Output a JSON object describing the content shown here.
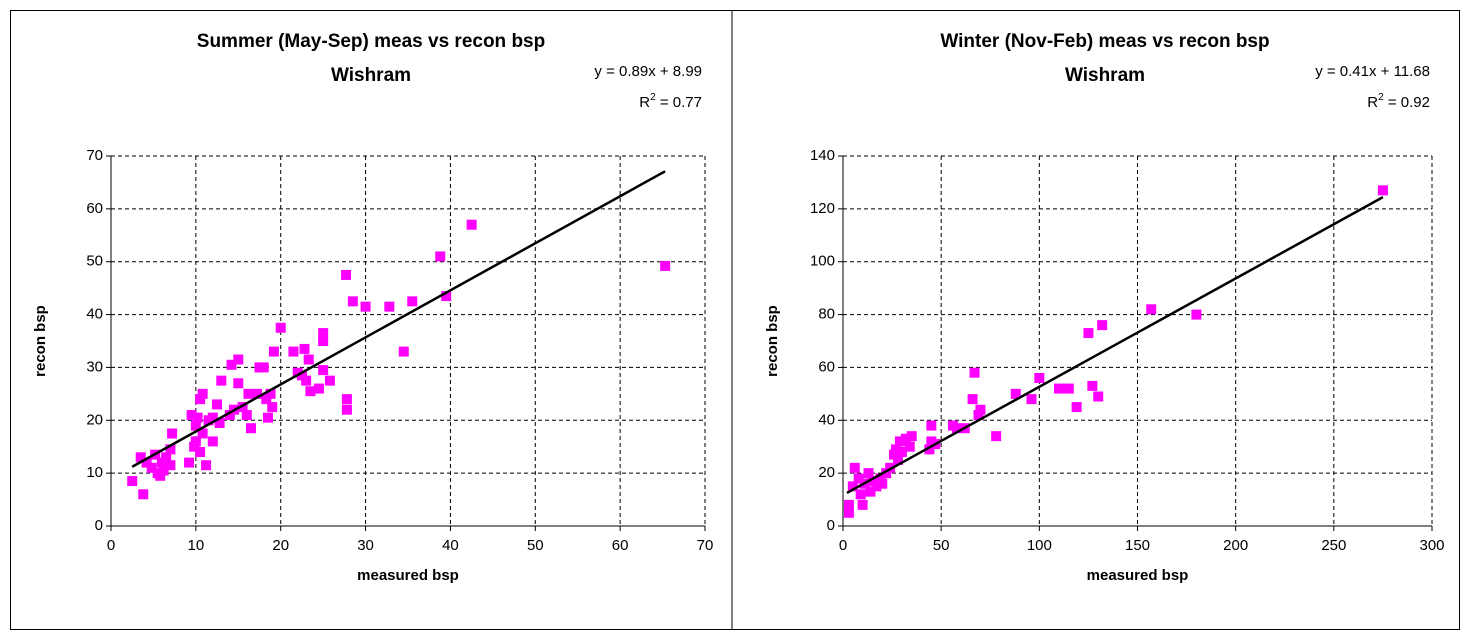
{
  "chart_data": [
    {
      "type": "scatter",
      "title": "Summer (May-Sep) meas vs recon bsp",
      "subtitle": "Wishram",
      "x_label": "measured bsp",
      "y_label": "recon bsp",
      "color": "#ff00ff",
      "grid": true,
      "xlim": [
        0,
        70
      ],
      "xticks": [
        0,
        10,
        20,
        30,
        40,
        50,
        60,
        70
      ],
      "ylim": [
        0,
        70
      ],
      "yticks": [
        0,
        10,
        20,
        30,
        40,
        50,
        60,
        70
      ],
      "x": [
        2.5,
        3.8,
        3.5,
        4.2,
        4.8,
        5.2,
        5.5,
        5.8,
        6,
        6.2,
        6.5,
        7,
        7,
        7.2,
        9.2,
        9.5,
        9.8,
        10,
        10,
        10.2,
        10.5,
        10.5,
        10.8,
        10.8,
        11.2,
        11.5,
        12,
        12,
        12.5,
        12.8,
        13,
        14,
        14.2,
        14.5,
        15,
        15,
        15.5,
        16,
        16.2,
        16.5,
        17.2,
        17.5,
        18,
        18.3,
        18.5,
        18.8,
        19,
        19.2,
        20,
        21.5,
        22,
        22.5,
        22.8,
        23,
        23.3,
        23.5,
        24.5,
        25,
        25,
        25,
        25.8,
        27.7,
        27.8,
        27.8,
        28.5,
        30,
        32.8,
        34.5,
        35.5,
        38.8,
        39.5,
        42.5,
        65.3
      ],
      "values": [
        8.5,
        6,
        13,
        12,
        11,
        13.5,
        10,
        9.5,
        12,
        10.5,
        13,
        11.5,
        14.5,
        17.5,
        12,
        21,
        15,
        16,
        19,
        20.5,
        14,
        24,
        17.5,
        25,
        11.5,
        20,
        16,
        20.5,
        23,
        19.5,
        27.5,
        21,
        30.5,
        22,
        31.5,
        27,
        22.5,
        21,
        25,
        18.5,
        25,
        30,
        30,
        24,
        20.5,
        25,
        22.5,
        33,
        37.5,
        33,
        29,
        28.5,
        33.5,
        27.5,
        31.5,
        25.5,
        26,
        29.5,
        35,
        36.5,
        27.5,
        47.5,
        22,
        24,
        42.5,
        41.5,
        41.5,
        33,
        42.5,
        51,
        43.5,
        57,
        49.2
      ],
      "trendline": {
        "slope": 0.89,
        "intercept": 8.99,
        "x": [
          2.5,
          65.3
        ],
        "equation": "y = 0.89x + 8.99",
        "r2_base": "R",
        "r2_sup": "2",
        "r2_text": " = 0.77"
      }
    },
    {
      "type": "scatter",
      "title": "Winter (Nov-Feb) meas vs recon bsp",
      "subtitle": "Wishram",
      "x_label": "measured bsp",
      "y_label": "recon bsp",
      "color": "#ff00ff",
      "grid": true,
      "xlim": [
        0,
        300
      ],
      "xticks": [
        0,
        50,
        100,
        150,
        200,
        250,
        300
      ],
      "ylim": [
        0,
        140
      ],
      "yticks": [
        0,
        20,
        40,
        60,
        80,
        100,
        120,
        140
      ],
      "x": [
        3,
        3,
        5,
        6,
        8,
        9,
        10,
        11,
        13,
        14,
        15,
        17,
        19,
        20,
        22,
        24,
        26,
        27,
        28,
        29,
        30,
        32,
        34,
        35,
        44,
        45,
        45,
        47,
        56,
        58,
        62,
        66,
        67,
        69,
        70,
        78,
        88,
        96,
        100,
        110,
        115,
        119,
        125,
        127,
        130,
        132,
        157,
        180,
        275
      ],
      "values": [
        5,
        8,
        15,
        22,
        18,
        12,
        8,
        16,
        20,
        13,
        17,
        15,
        18,
        16,
        20,
        22,
        27,
        29,
        25,
        32,
        28,
        33,
        30,
        34,
        29,
        38,
        32,
        31,
        38,
        37,
        37,
        48,
        58,
        42,
        44,
        34,
        50,
        48,
        56,
        52,
        52,
        45,
        73,
        53,
        49,
        76,
        82,
        80,
        127
      ],
      "trendline": {
        "slope": 0.41,
        "intercept": 11.68,
        "x": [
          2,
          275
        ],
        "equation": "y = 0.41x + 11.68",
        "r2_base": "R",
        "r2_sup": "2",
        "r2_text": " = 0.92"
      }
    }
  ]
}
